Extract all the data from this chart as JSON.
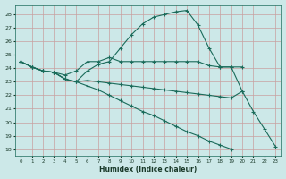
{
  "xlabel": "Humidex (Indice chaleur)",
  "bg_color": "#cce8e8",
  "grid_color": "#b0d4d4",
  "line_color": "#1a6b5a",
  "xlim": [
    -0.5,
    23.5
  ],
  "ylim": [
    17.5,
    28.7
  ],
  "yticks": [
    18,
    19,
    20,
    21,
    22,
    23,
    24,
    25,
    26,
    27,
    28
  ],
  "xticks": [
    0,
    1,
    2,
    3,
    4,
    5,
    6,
    7,
    8,
    9,
    10,
    11,
    12,
    13,
    14,
    15,
    16,
    17,
    18,
    19,
    20,
    21,
    22,
    23
  ],
  "lines": [
    {
      "x": [
        0,
        1,
        2,
        3,
        4,
        5,
        6,
        7,
        8,
        9,
        10,
        11,
        12,
        13,
        14,
        15,
        16,
        17,
        18,
        19,
        20,
        21,
        22,
        23
      ],
      "y": [
        24.5,
        24.1,
        23.8,
        23.7,
        23.2,
        23.0,
        23.8,
        24.3,
        24.5,
        25.5,
        26.5,
        27.3,
        27.8,
        28.0,
        28.2,
        28.3,
        27.2,
        25.5,
        24.1,
        24.1,
        22.3,
        20.8,
        19.5,
        18.2
      ]
    },
    {
      "x": [
        0,
        1,
        2,
        3,
        4,
        5,
        6,
        7,
        8,
        9,
        10,
        11,
        12,
        13,
        14,
        15,
        16,
        17,
        18,
        19,
        20
      ],
      "y": [
        24.5,
        24.1,
        23.8,
        23.7,
        23.5,
        23.8,
        24.5,
        24.5,
        24.8,
        24.5,
        24.5,
        24.5,
        24.5,
        24.5,
        24.5,
        24.5,
        24.5,
        24.2,
        24.1,
        24.1,
        24.1
      ]
    },
    {
      "x": [
        0,
        1,
        2,
        3,
        4,
        5,
        6,
        7,
        8,
        9,
        10,
        11,
        12,
        13,
        14,
        15,
        16,
        17,
        18,
        19,
        20
      ],
      "y": [
        24.5,
        24.1,
        23.8,
        23.7,
        23.2,
        23.0,
        23.1,
        23.0,
        22.9,
        22.8,
        22.7,
        22.6,
        22.5,
        22.4,
        22.3,
        22.2,
        22.1,
        22.0,
        21.9,
        21.8,
        22.3
      ]
    },
    {
      "x": [
        0,
        1,
        2,
        3,
        4,
        5,
        6,
        7,
        8,
        9,
        10,
        11,
        12,
        13,
        14,
        15,
        16,
        17,
        18,
        19
      ],
      "y": [
        24.5,
        24.1,
        23.8,
        23.7,
        23.2,
        23.0,
        22.7,
        22.4,
        22.0,
        21.6,
        21.2,
        20.8,
        20.5,
        20.1,
        19.7,
        19.3,
        19.0,
        18.6,
        18.3,
        18.0
      ]
    }
  ]
}
